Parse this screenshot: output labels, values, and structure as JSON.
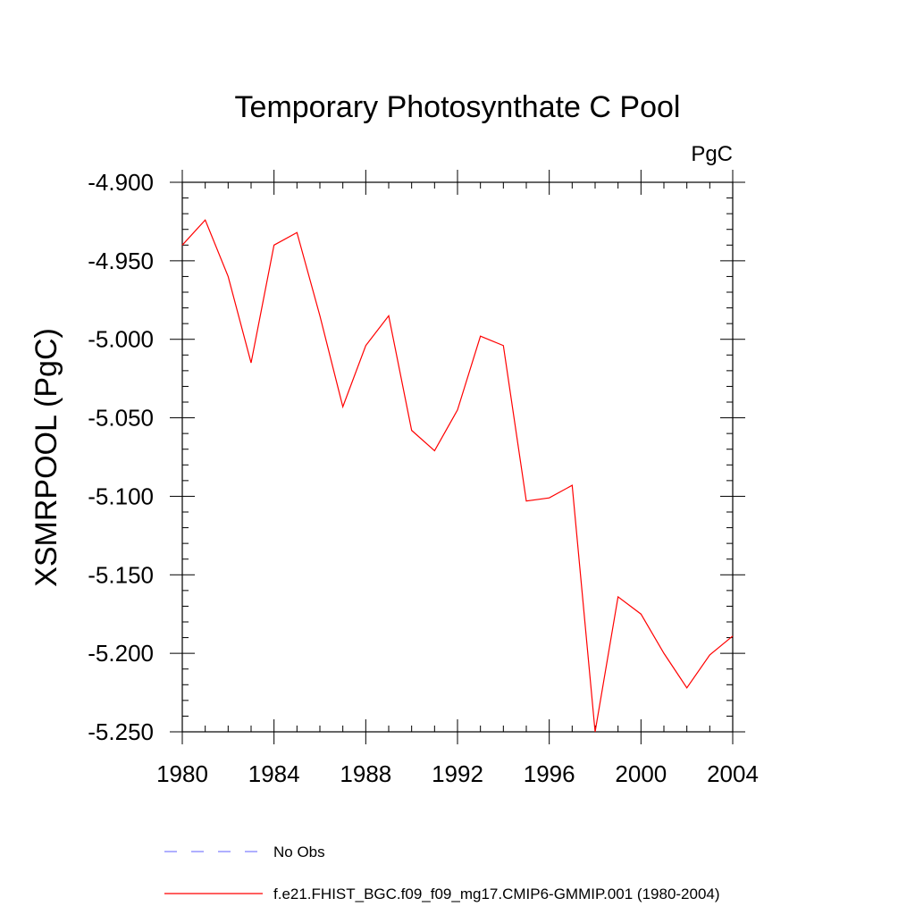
{
  "chart_data": {
    "type": "line",
    "title": "Temporary Photosynthate C Pool",
    "units": "PgC",
    "xlabel": "",
    "ylabel": "XSMRPOOL  (PgC)",
    "xlim": [
      1980,
      2004
    ],
    "ylim": [
      -5.25,
      -4.9
    ],
    "x_ticks": [
      1980,
      1984,
      1988,
      1992,
      1996,
      2000,
      2004
    ],
    "x_tick_labels": [
      "1980",
      "1984",
      "1988",
      "1992",
      "1996",
      "2000",
      "2004"
    ],
    "y_ticks": [
      -4.9,
      -4.95,
      -5.0,
      -5.05,
      -5.1,
      -5.15,
      -5.2,
      -5.25
    ],
    "y_tick_labels": [
      "-4.900",
      "-4.950",
      "-5.000",
      "-5.050",
      "-5.100",
      "-5.150",
      "-5.200",
      "-5.250"
    ],
    "grid": false,
    "legend_position": "bottom-center",
    "series": [
      {
        "name": "f.e21.FHIST_BGC.f09_f09_mg17.CMIP6-GMMIP.001 (1980-2004)",
        "color": "#ff0000",
        "line_style": "solid",
        "x": [
          1980,
          1981,
          1982,
          1983,
          1984,
          1985,
          1986,
          1987,
          1988,
          1989,
          1990,
          1991,
          1992,
          1993,
          1994,
          1995,
          1996,
          1997,
          1998,
          1999,
          2000,
          2001,
          2002,
          2003,
          2004
        ],
        "values": [
          -4.94,
          -4.924,
          -4.96,
          -5.015,
          -4.94,
          -4.932,
          -4.985,
          -5.043,
          -5.004,
          -4.985,
          -5.058,
          -5.071,
          -5.045,
          -4.998,
          -5.004,
          -5.103,
          -5.101,
          -5.093,
          -5.25,
          -5.164,
          -5.175,
          -5.2,
          -5.222,
          -5.201,
          -5.189
        ]
      }
    ],
    "legend": [
      {
        "label": "No Obs",
        "color": "#7f7fff",
        "line_style": "dashed"
      },
      {
        "label": "f.e21.FHIST_BGC.f09_f09_mg17.CMIP6-GMMIP.001 (1980-2004)",
        "color": "#ff0000",
        "line_style": "solid"
      }
    ]
  }
}
